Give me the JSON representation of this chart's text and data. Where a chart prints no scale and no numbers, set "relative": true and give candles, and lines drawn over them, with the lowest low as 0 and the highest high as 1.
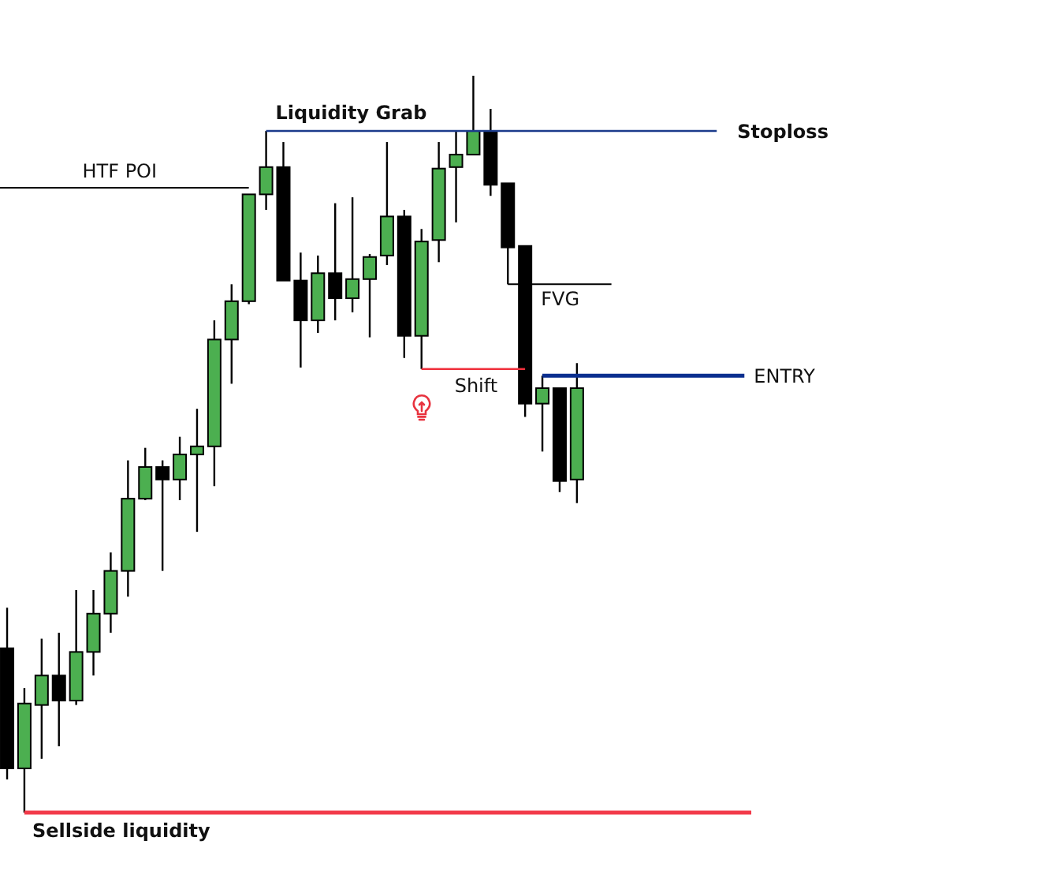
{
  "chart_data": {
    "type": "candlestick",
    "relative": true,
    "categories": [
      null,
      null,
      null,
      null,
      null,
      null,
      null,
      null,
      null,
      null,
      null,
      null,
      null,
      null,
      null,
      null,
      null,
      null,
      null,
      null,
      null,
      null,
      null,
      null,
      null,
      null,
      null,
      null,
      null,
      null,
      null,
      null,
      null,
      null
    ],
    "ohlc": [
      [
        0.223,
        0.278,
        0.045,
        0.06
      ],
      [
        0.06,
        0.169,
        0,
        0.148
      ],
      [
        0.146,
        0.236,
        0.073,
        0.186
      ],
      [
        0.186,
        0.244,
        0.09,
        0.152
      ],
      [
        0.152,
        0.302,
        0.146,
        0.218
      ],
      [
        0.218,
        0.302,
        0.186,
        0.27
      ],
      [
        0.27,
        0.353,
        0.244,
        0.328
      ],
      [
        0.328,
        0.478,
        0.293,
        0.426
      ],
      [
        0.426,
        0.495,
        0.424,
        0.469
      ],
      [
        0.469,
        0.478,
        0.328,
        0.452
      ],
      [
        0.452,
        0.51,
        0.424,
        0.486
      ],
      [
        0.486,
        0.548,
        0.381,
        0.497
      ],
      [
        0.497,
        0.668,
        0.443,
        0.642
      ],
      [
        0.642,
        0.717,
        0.582,
        0.694
      ],
      [
        0.694,
        0.839,
        0.69,
        0.839
      ],
      [
        0.839,
        0.925,
        0.818,
        0.876
      ],
      [
        0.876,
        0.91,
        0.722,
        0.722
      ],
      [
        0.722,
        0.76,
        0.604,
        0.668
      ],
      [
        0.668,
        0.756,
        0.651,
        0.732
      ],
      [
        0.732,
        0.827,
        0.668,
        0.698
      ],
      [
        0.698,
        0.835,
        0.679,
        0.724
      ],
      [
        0.724,
        0.758,
        0.645,
        0.754
      ],
      [
        0.756,
        0.91,
        0.743,
        0.809
      ],
      [
        0.809,
        0.818,
        0.617,
        0.647
      ],
      [
        0.647,
        0.792,
        0.602,
        0.775
      ],
      [
        0.777,
        0.91,
        0.747,
        0.874
      ],
      [
        0.876,
        0.925,
        0.801,
        0.893
      ],
      [
        0.893,
        1,
        0.893,
        0.925
      ],
      [
        0.925,
        0.955,
        0.837,
        0.852
      ],
      [
        0.854,
        0.854,
        0.717,
        0.767
      ],
      [
        0.769,
        0.769,
        0.537,
        0.555
      ],
      [
        0.555,
        0.593,
        0.49,
        0.576
      ],
      [
        0.576,
        0.576,
        0.435,
        0.45
      ],
      [
        0.452,
        0.61,
        0.42,
        0.576
      ]
    ],
    "colors": [
      "#000000",
      "#4caf50",
      "#4caf50",
      "#000000",
      "#4caf50",
      "#4caf50",
      "#4caf50",
      "#4caf50",
      "#4caf50",
      "#000000",
      "#4caf50",
      "#4caf50",
      "#4caf50",
      "#4caf50",
      "#4caf50",
      "#4caf50",
      "#000000",
      "#000000",
      "#4caf50",
      "#000000",
      "#4caf50",
      "#4caf50",
      "#4caf50",
      "#000000",
      "#4caf50",
      "#4caf50",
      "#4caf50",
      "#4caf50",
      "#000000",
      "#000000",
      "#000000",
      "#4caf50",
      "#000000",
      "#4caf50"
    ],
    "ref_lines": [
      {
        "axis": "y",
        "value": 0.848,
        "label": "HTF POI",
        "color": "#000000"
      },
      {
        "axis": "y",
        "value": 0.925,
        "label": "Stoploss",
        "color": "#1b3b8b"
      },
      {
        "axis": "y",
        "value": 0.717,
        "label": "FVG",
        "color": "#000000"
      },
      {
        "axis": "y",
        "value": 0.602,
        "label": "Shift",
        "color": "#f0303c"
      },
      {
        "axis": "y",
        "value": 0.593,
        "label": "ENTRY",
        "color": "#0b2f8f"
      },
      {
        "axis": "y",
        "value": 0,
        "label": "Sellside liquidity",
        "color": "#f23a4a"
      }
    ],
    "annotations": [
      {
        "text": "Liquidity Grab",
        "y": 0.925
      }
    ]
  }
}
